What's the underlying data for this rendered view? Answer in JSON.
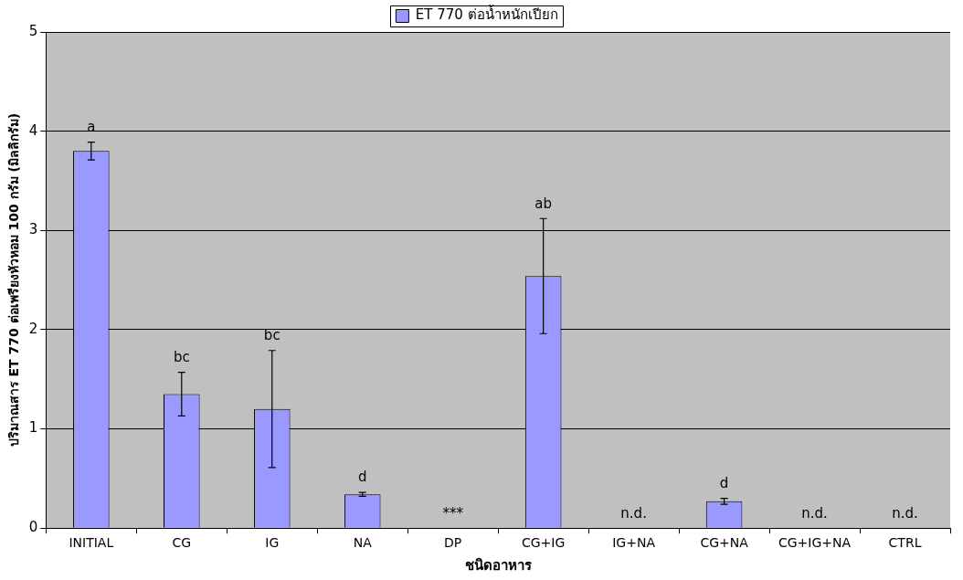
{
  "chart_data": {
    "type": "bar",
    "xlabel": "ชนิดอาหาร",
    "ylabel": "ปริมาณสาร ET 770 ต่อเพรียงหัวหอม 100 กรัม (มิลลิกรัม)",
    "categories": [
      "INITIAL",
      "CG",
      "IG",
      "NA",
      "DP",
      "CG+IG",
      "IG+NA",
      "CG+NA",
      "CG+IG+NA",
      "CTRL"
    ],
    "series": [
      {
        "name": "ET 770 ต่อน้ำหนักเปียก",
        "color": "#9999ff",
        "values": [
          3.8,
          1.35,
          1.2,
          0.34,
          0,
          2.54,
          0,
          0.27,
          0,
          0
        ],
        "errors": [
          0.09,
          0.22,
          0.59,
          0.02,
          null,
          0.58,
          null,
          0.03,
          null,
          null
        ]
      }
    ],
    "ylim": [
      0,
      5
    ],
    "yticks": [
      0,
      1,
      2,
      3,
      4,
      5
    ],
    "grid": "y",
    "legend": "top",
    "annotations": [
      {
        "text": "a",
        "x": "INITIAL",
        "y": 3.89
      },
      {
        "text": "bc",
        "x": "CG",
        "y": 1.57
      },
      {
        "text": "bc",
        "x": "IG",
        "y": 1.79
      },
      {
        "text": "d",
        "x": "NA",
        "y": 0.36
      },
      {
        "text": "***",
        "x": "DP",
        "y": 0
      },
      {
        "text": "ab",
        "x": "CG+IG",
        "y": 3.12
      },
      {
        "text": "n.d.",
        "x": "IG+NA",
        "y": 0
      },
      {
        "text": "d",
        "x": "CG+NA",
        "y": 0.3
      },
      {
        "text": "n.d.",
        "x": "CG+IG+NA",
        "y": 0
      },
      {
        "text": "n.d.",
        "x": "CTRL",
        "y": 0
      }
    ]
  }
}
